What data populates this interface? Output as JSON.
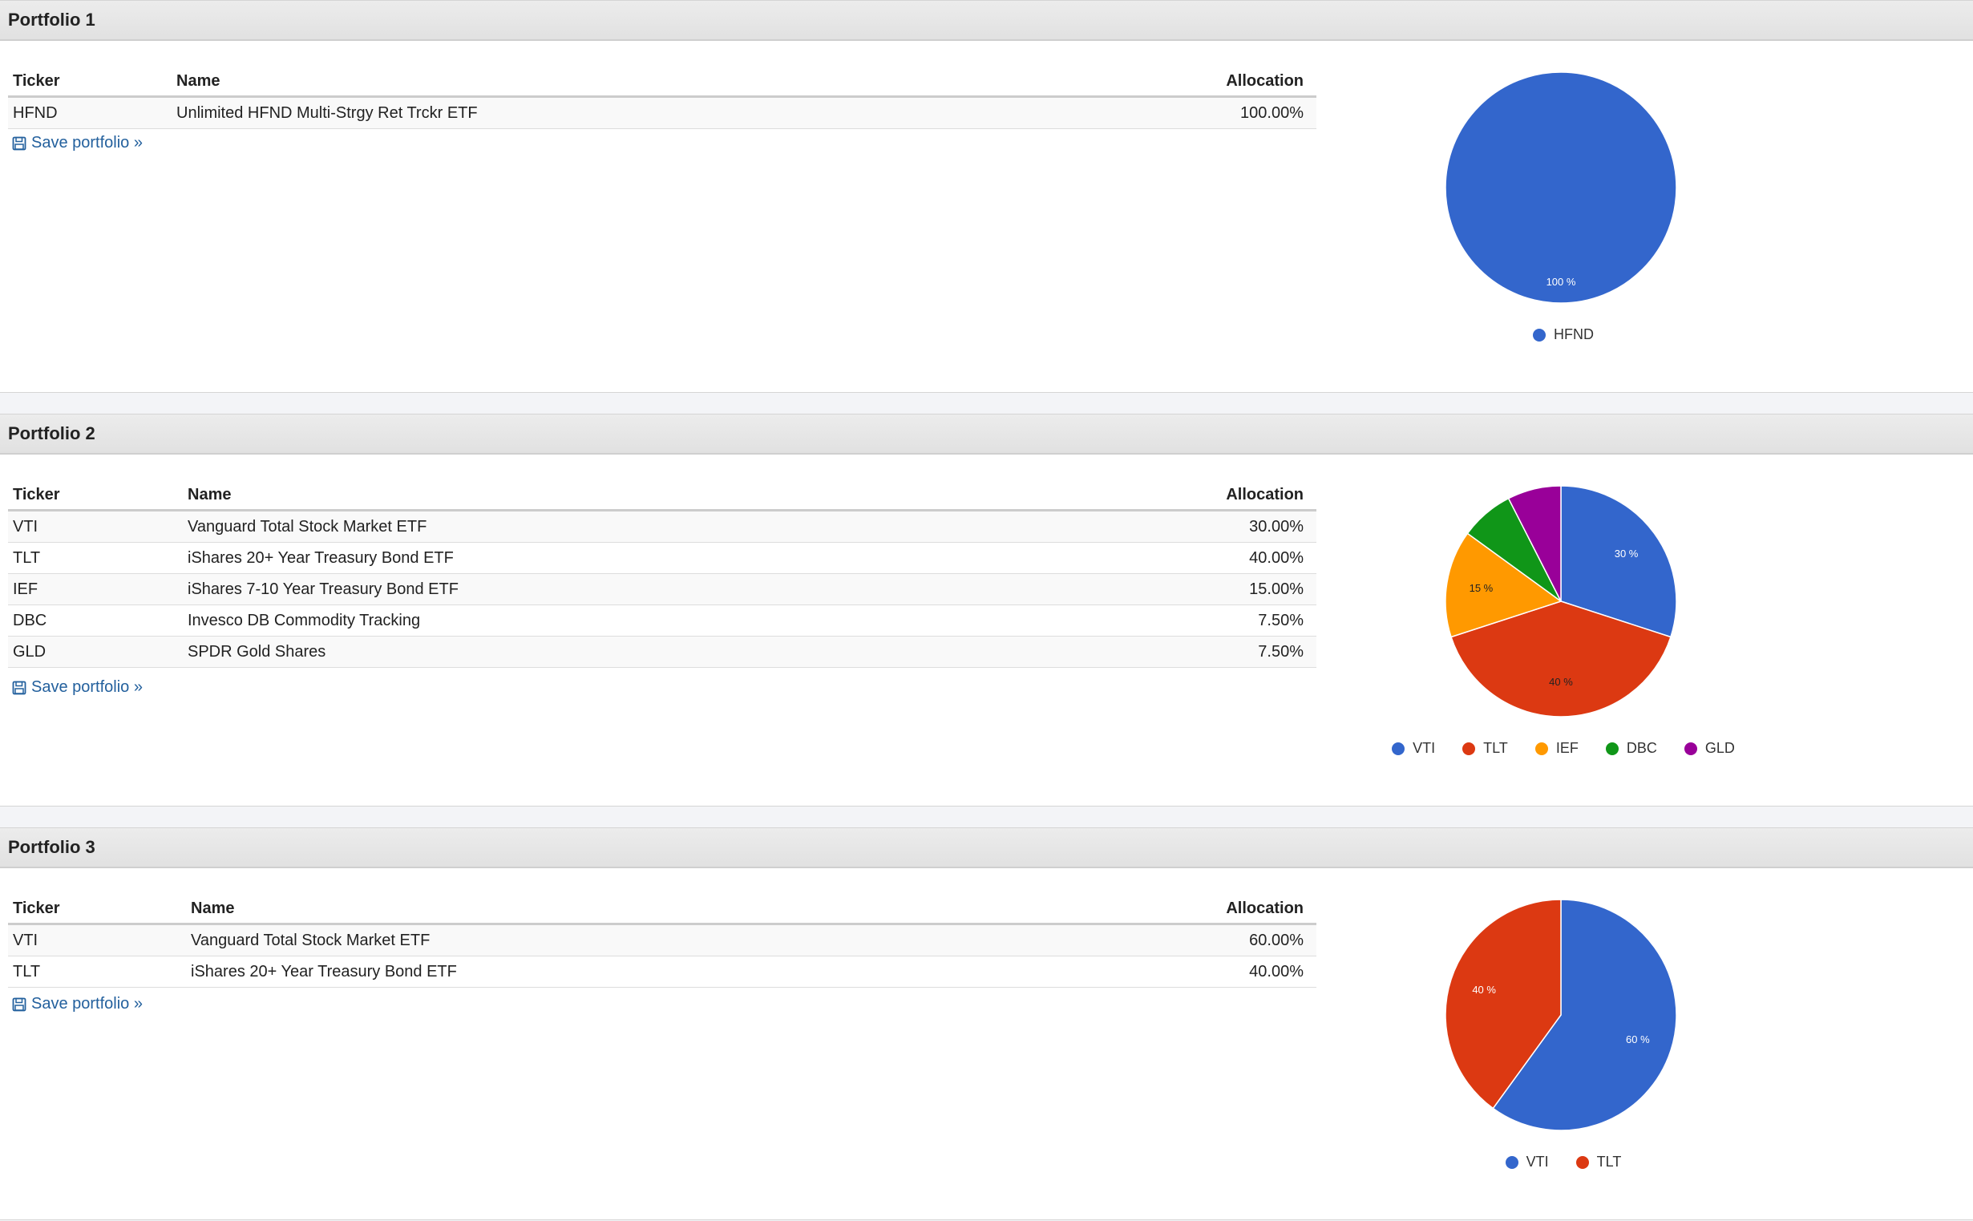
{
  "headers": {
    "ticker": "Ticker",
    "name": "Name",
    "allocation": "Allocation"
  },
  "save_label": "Save portfolio »",
  "colors": {
    "VTI": "#3366cc",
    "HFND": "#3366cc",
    "TLT": "#dc3912",
    "IEF": "#ff9900",
    "DBC": "#109618",
    "GLD": "#990099"
  },
  "portfolios": [
    {
      "title": "Portfolio 1",
      "holdings": [
        {
          "ticker": "HFND",
          "name": "Unlimited HFND Multi-Strgy Ret Trckr ETF",
          "allocation": "100.00%"
        }
      ]
    },
    {
      "title": "Portfolio 2",
      "holdings": [
        {
          "ticker": "VTI",
          "name": "Vanguard Total Stock Market ETF",
          "allocation": "30.00%"
        },
        {
          "ticker": "TLT",
          "name": "iShares 20+ Year Treasury Bond ETF",
          "allocation": "40.00%"
        },
        {
          "ticker": "IEF",
          "name": "iShares 7-10 Year Treasury Bond ETF",
          "allocation": "15.00%"
        },
        {
          "ticker": "DBC",
          "name": "Invesco DB Commodity Tracking",
          "allocation": "7.50%"
        },
        {
          "ticker": "GLD",
          "name": "SPDR Gold Shares",
          "allocation": "7.50%"
        }
      ]
    },
    {
      "title": "Portfolio 3",
      "holdings": [
        {
          "ticker": "VTI",
          "name": "Vanguard Total Stock Market ETF",
          "allocation": "60.00%"
        },
        {
          "ticker": "TLT",
          "name": "iShares 20+ Year Treasury Bond ETF",
          "allocation": "40.00%"
        }
      ]
    }
  ],
  "chart_data": [
    {
      "type": "pie",
      "categories": [
        "HFND"
      ],
      "values": [
        100
      ],
      "labels": [
        "100 %"
      ],
      "legend": "bottom"
    },
    {
      "type": "pie",
      "categories": [
        "VTI",
        "TLT",
        "IEF",
        "DBC",
        "GLD"
      ],
      "values": [
        30,
        40,
        15,
        7.5,
        7.5
      ],
      "labels": [
        "30 %",
        "40 %",
        "15 %",
        "",
        ""
      ],
      "legend": "bottom"
    },
    {
      "type": "pie",
      "categories": [
        "VTI",
        "TLT"
      ],
      "values": [
        60,
        40
      ],
      "labels": [
        "60 %",
        "40 %"
      ],
      "legend": "bottom"
    }
  ]
}
